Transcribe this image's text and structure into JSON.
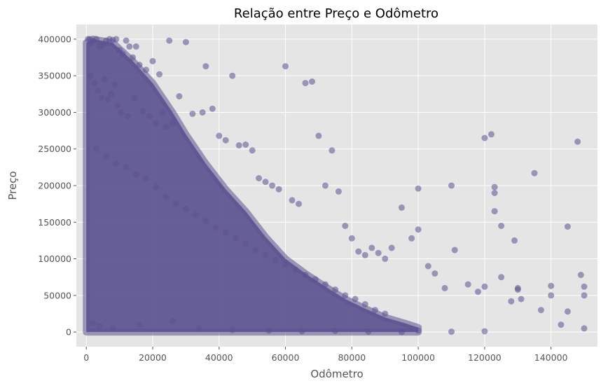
{
  "chart_data": {
    "type": "scatter",
    "title": "Relação entre Preço e Odômetro",
    "xlabel": "Odômetro",
    "ylabel": "Preço",
    "xlim": [
      -3000,
      154000
    ],
    "ylim": [
      -20000,
      420000
    ],
    "xticks": [
      0,
      20000,
      40000,
      60000,
      80000,
      100000,
      120000,
      140000
    ],
    "xtick_labels": [
      "0",
      "20000",
      "40000",
      "60000",
      "80000",
      "100000",
      "120000",
      "140000"
    ],
    "yticks": [
      0,
      50000,
      100000,
      150000,
      200000,
      250000,
      300000,
      350000,
      400000
    ],
    "ytick_labels": [
      "0",
      "50000",
      "100000",
      "150000",
      "200000",
      "250000",
      "300000",
      "350000",
      "400000"
    ],
    "grid": true,
    "legend": "none",
    "colors": {
      "point": "#5b5290",
      "background": "#e5e5e5",
      "grid": "#ffffff"
    },
    "series": [
      {
        "x": [
          500,
          1000,
          1500,
          2000,
          3000,
          4000,
          5000,
          6000,
          7000,
          8000,
          9000,
          10000,
          11000,
          12000,
          13000,
          14000,
          15000,
          16000,
          18000,
          20000,
          22000,
          25000,
          30000,
          1200,
          2500,
          3500,
          4500,
          5500,
          6500,
          7500,
          8500,
          9500,
          10500,
          12500,
          14500,
          17000,
          19000,
          21000,
          23000,
          24000,
          26000,
          28000,
          32000,
          35000,
          36000,
          38000,
          40000,
          42000,
          44000,
          46000,
          48000,
          50000,
          52000,
          54000,
          56000,
          58000,
          60000,
          62000,
          64000,
          66000,
          68000,
          70000,
          72000,
          74000,
          76000,
          78000,
          80000,
          82000,
          84000,
          86000,
          88000,
          90000,
          92000,
          95000,
          98000,
          100000,
          100000,
          103000,
          105000,
          108000,
          110000,
          111000,
          115000,
          118000,
          120000,
          120000,
          122000,
          123000,
          123000,
          123000,
          125000,
          125000,
          128000,
          129000,
          130000,
          130000,
          131000,
          135000,
          137000,
          140000,
          140000,
          143000,
          145000,
          145000,
          148000,
          149000,
          150000,
          150000,
          150000,
          3000,
          6000,
          9000,
          12000,
          15000,
          18000,
          21000,
          24000,
          27000,
          30000,
          33000,
          36000,
          39000,
          42000,
          45000,
          48000,
          51000,
          54000,
          57000,
          60000,
          63000,
          66000,
          69000,
          72000,
          75000,
          78000,
          81000,
          84000,
          87000,
          90000,
          2000,
          4000,
          8000,
          16000,
          26000,
          34000,
          44000,
          55000,
          65000,
          75000,
          85000,
          95000,
          100000,
          110000,
          120000
        ],
        "y": [
          400000,
          400000,
          395000,
          398000,
          400000,
          390000,
          392000,
          398000,
          400000,
          399000,
          400000,
          385000,
          380000,
          398000,
          390000,
          375000,
          390000,
          365000,
          358000,
          370000,
          352000,
          398000,
          396000,
          350000,
          340000,
          330000,
          320000,
          345000,
          318000,
          325000,
          338000,
          310000,
          300000,
          295000,
          320000,
          302000,
          295000,
          285000,
          300000,
          280000,
          285000,
          322000,
          298000,
          300000,
          363000,
          305000,
          268000,
          262000,
          350000,
          255000,
          256000,
          248000,
          210000,
          205000,
          200000,
          195000,
          363000,
          180000,
          175000,
          340000,
          342000,
          268000,
          200000,
          248000,
          192000,
          145000,
          128000,
          110000,
          105000,
          115000,
          108000,
          100000,
          115000,
          170000,
          128000,
          196000,
          140000,
          90000,
          80000,
          60000,
          200000,
          112000,
          65000,
          55000,
          265000,
          62000,
          270000,
          198000,
          190000,
          165000,
          145000,
          75000,
          42000,
          125000,
          58000,
          60000,
          45000,
          217000,
          30000,
          63000,
          50000,
          10000,
          144000,
          28000,
          260000,
          78000,
          62000,
          50000,
          5000,
          250000,
          240000,
          230000,
          225000,
          215000,
          210000,
          198000,
          185000,
          175000,
          168000,
          160000,
          152000,
          143000,
          136000,
          128000,
          120000,
          112000,
          105000,
          98000,
          92000,
          85000,
          78000,
          72000,
          65000,
          58000,
          50000,
          45000,
          38000,
          30000,
          25000,
          12000,
          8000,
          6000,
          10000,
          15000,
          5000,
          3000,
          2000,
          1000,
          1500,
          500,
          0,
          2000,
          500,
          1000
        ]
      }
    ]
  }
}
